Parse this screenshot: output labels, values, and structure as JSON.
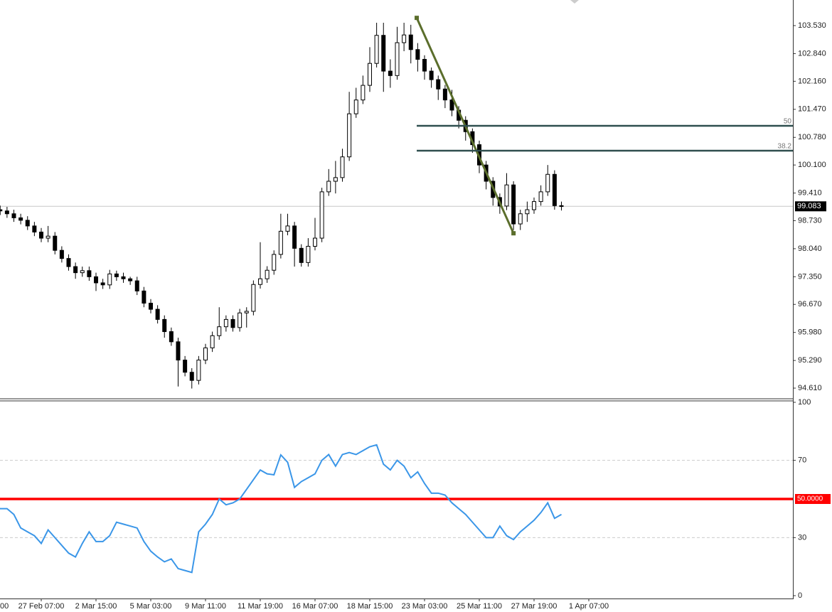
{
  "chart_data": [
    {
      "type": "candlestick",
      "categories": [
        "00",
        null,
        null,
        null,
        null,
        null,
        null,
        null,
        "27 Feb 07:00",
        null,
        null,
        null,
        null,
        null,
        null,
        null,
        "2 Mar 15:00",
        null,
        null,
        null,
        null,
        null,
        null,
        null,
        "5 Mar 03:00",
        null,
        null,
        null,
        null,
        null,
        null,
        null,
        "9 Mar 11:00",
        null,
        null,
        null,
        null,
        null,
        null,
        null,
        "11 Mar 19:00",
        null,
        null,
        null,
        null,
        null,
        null,
        null,
        "16 Mar 07:00",
        null,
        null,
        null,
        null,
        null,
        null,
        null,
        "18 Mar 15:00",
        null,
        null,
        null,
        null,
        null,
        null,
        null,
        "23 Mar 03:00",
        null,
        null,
        null,
        null,
        null,
        null,
        null,
        "25 Mar 11:00",
        null,
        null,
        null,
        null,
        null,
        null,
        null,
        "27 Mar 19:00",
        null,
        null,
        null,
        null,
        null,
        null,
        null,
        "1 Apr 07:00"
      ],
      "open": [
        98.9,
        98.95,
        99.0,
        98.97,
        98.9,
        98.8,
        98.74,
        98.6,
        98.45,
        98.3,
        98.35,
        98.0,
        97.8,
        97.6,
        97.45,
        97.5,
        97.35,
        97.2,
        97.15,
        97.42,
        97.35,
        97.3,
        97.25,
        97.0,
        96.7,
        96.55,
        96.3,
        96.0,
        95.75,
        95.3,
        95.0,
        94.8,
        95.3,
        95.6,
        95.9,
        96.12,
        96.3,
        96.1,
        96.46,
        96.5,
        97.16,
        97.3,
        97.51,
        97.9,
        98.47,
        98.6,
        98.05,
        97.7,
        98.1,
        98.3,
        99.44,
        99.7,
        99.79,
        100.3,
        101.36,
        101.7,
        102.06,
        102.6,
        103.29,
        102.41,
        102.3,
        103.11,
        103.3,
        102.94,
        102.7,
        102.41,
        102.2,
        101.97,
        101.7,
        101.45,
        101.2,
        100.92,
        100.6,
        100.1,
        99.7,
        99.3,
        99.09,
        99.61,
        98.65,
        98.9,
        99.0,
        99.2,
        99.44,
        99.87,
        99.1,
        null,
        null,
        null,
        null
      ],
      "high": [
        99.05,
        99.1,
        99.1,
        99.07,
        99.0,
        98.9,
        98.84,
        98.7,
        98.55,
        98.6,
        98.45,
        98.1,
        97.9,
        97.7,
        97.6,
        97.6,
        97.45,
        97.3,
        97.52,
        97.5,
        97.45,
        97.35,
        97.35,
        97.1,
        96.8,
        96.65,
        96.4,
        96.1,
        95.85,
        95.4,
        95.1,
        95.4,
        95.7,
        96.0,
        96.6,
        96.4,
        96.4,
        96.56,
        96.6,
        97.26,
        98.2,
        97.61,
        98.0,
        98.9,
        98.9,
        98.7,
        98.15,
        98.3,
        98.8,
        99.54,
        100.0,
        100.2,
        100.5,
        101.9,
        102.0,
        102.3,
        103.0,
        103.6,
        103.6,
        102.7,
        103.5,
        103.6,
        103.55,
        103.1,
        102.8,
        102.5,
        102.3,
        102.07,
        101.95,
        101.55,
        101.3,
        101.0,
        100.7,
        100.2,
        99.8,
        99.4,
        99.9,
        99.7,
        99.0,
        99.2,
        99.3,
        99.6,
        100.1,
        99.97,
        99.2,
        null,
        null,
        null,
        null
      ],
      "low": [
        98.8,
        98.85,
        98.87,
        98.8,
        98.7,
        98.64,
        98.5,
        98.35,
        98.2,
        98.2,
        97.9,
        97.7,
        97.5,
        97.3,
        97.35,
        97.25,
        97.0,
        97.05,
        97.05,
        97.25,
        97.2,
        97.15,
        96.9,
        96.6,
        96.45,
        96.2,
        95.85,
        95.65,
        94.65,
        94.9,
        94.6,
        94.7,
        95.2,
        95.5,
        95.8,
        96.0,
        96.0,
        96.0,
        96.1,
        96.4,
        97.06,
        97.2,
        97.4,
        97.8,
        98.37,
        97.6,
        97.6,
        97.6,
        98.0,
        98.2,
        99.34,
        99.4,
        99.69,
        100.2,
        101.26,
        101.6,
        101.9,
        102.5,
        101.9,
        102.0,
        102.2,
        102.9,
        102.6,
        102.4,
        102.2,
        102.0,
        101.7,
        101.5,
        101.3,
        101.0,
        100.7,
        100.4,
        99.9,
        99.5,
        99.1,
        98.9,
        98.99,
        98.5,
        98.5,
        98.7,
        98.9,
        99.1,
        99.34,
        99.0,
        98.98,
        null,
        null,
        null,
        null
      ],
      "close": [
        98.95,
        99.0,
        98.97,
        98.9,
        98.8,
        98.74,
        98.6,
        98.45,
        98.3,
        98.35,
        98.0,
        97.8,
        97.6,
        97.45,
        97.5,
        97.35,
        97.2,
        97.15,
        97.42,
        97.35,
        97.3,
        97.25,
        97.0,
        96.7,
        96.55,
        96.3,
        96.0,
        95.75,
        95.3,
        95.0,
        94.8,
        95.3,
        95.6,
        95.9,
        96.12,
        96.3,
        96.1,
        96.46,
        96.5,
        97.16,
        97.3,
        97.51,
        97.9,
        98.47,
        98.6,
        98.05,
        97.7,
        98.1,
        98.3,
        99.44,
        99.7,
        99.79,
        100.3,
        101.36,
        101.7,
        102.06,
        102.6,
        103.29,
        102.41,
        102.3,
        103.11,
        103.3,
        102.94,
        102.7,
        102.41,
        102.2,
        101.97,
        101.7,
        101.45,
        101.2,
        100.92,
        100.6,
        100.1,
        99.7,
        99.3,
        99.09,
        99.61,
        98.65,
        98.9,
        99.0,
        99.2,
        99.44,
        99.87,
        99.1,
        99.08,
        null,
        null,
        null,
        null
      ],
      "ylim": [
        94.348,
        104.16
      ],
      "yticks": [
        {
          "value": 103.53,
          "label": "103.530"
        },
        {
          "value": 102.84,
          "label": "102.840"
        },
        {
          "value": 102.16,
          "label": "102.160"
        },
        {
          "value": 101.47,
          "label": "101.470"
        },
        {
          "value": 100.78,
          "label": "100.780"
        },
        {
          "value": 100.1,
          "label": "100.100"
        },
        {
          "value": 99.41,
          "label": "99.410"
        },
        {
          "value": 98.73,
          "label": "98.730"
        },
        {
          "value": 98.04,
          "label": "98.040"
        },
        {
          "value": 97.35,
          "label": "97.350"
        },
        {
          "value": 96.67,
          "label": "96.670"
        },
        {
          "value": 95.98,
          "label": "95.980"
        },
        {
          "value": 95.29,
          "label": "95.290"
        },
        {
          "value": 94.61,
          "label": "94.610"
        }
      ],
      "last_price": 99.083,
      "levels": [
        {
          "price": 101.064,
          "ratio": 50
        },
        {
          "price": 100.452,
          "ratio": 38.2
        }
      ],
      "level_color": "#2f4f4f",
      "trend_line": {
        "x": [
          62.86,
          77.0
        ],
        "y": [
          103.72,
          98.42
        ],
        "color": "#5b6e2c"
      }
    },
    {
      "type": "line",
      "series": [
        {
          "color": "#3a96e8",
          "values": [
            46,
            46,
            45,
            45,
            42,
            35,
            33,
            31,
            27,
            34,
            30,
            26,
            22,
            20,
            27,
            33,
            28,
            28,
            31,
            38,
            37,
            36,
            35,
            28,
            23,
            20,
            17.5,
            19,
            14,
            13,
            12,
            33,
            37,
            42,
            50,
            47,
            48,
            50,
            55,
            60,
            65,
            63,
            62.5,
            72.8,
            69,
            56,
            59,
            61,
            63,
            70,
            73,
            67,
            73,
            74,
            73,
            75,
            77,
            78,
            68,
            65,
            70,
            67,
            61,
            64,
            58,
            53,
            53,
            52,
            48,
            45,
            42,
            38,
            34,
            30,
            30,
            36,
            31,
            29,
            33,
            36,
            39,
            43,
            48,
            40,
            42,
            null,
            null,
            null,
            null
          ]
        }
      ],
      "ylim": [
        0,
        100
      ],
      "yticks": [
        0,
        30,
        70,
        100
      ],
      "levels": [
        {
          "value": 50,
          "label": "50.0000",
          "color": "#ff0000"
        }
      ]
    }
  ]
}
